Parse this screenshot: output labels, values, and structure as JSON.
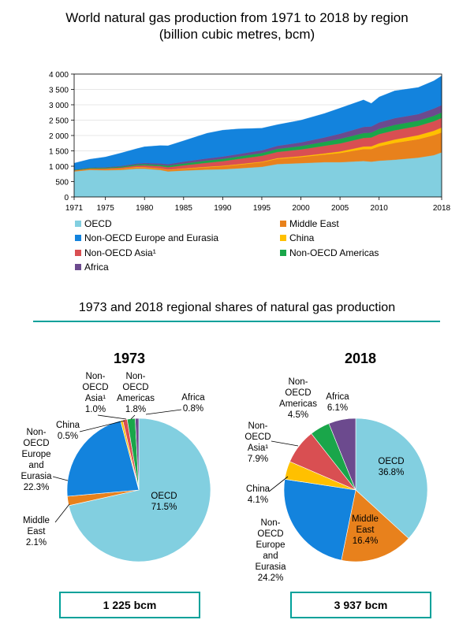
{
  "titles": {
    "main_line1": "World natural gas production from 1971 to 2018 by region",
    "main_line2": "(billion cubic metres, bcm)",
    "shares": "1973 and 2018 regional shares of natural gas production"
  },
  "colors": {
    "OECD": "#82cfe0",
    "Middle East": "#e8811c",
    "China": "#ffc000",
    "Non-OECD Asia": "#d94f52",
    "Non-OECD Americas": "#1aa64a",
    "Africa": "#6c4a8e",
    "Non-OECD Europe and Eurasia": "#1383dd",
    "accent": "#00a19a"
  },
  "chart_data": [
    {
      "type": "area",
      "stacked": true,
      "title": "World natural gas production from 1971 to 2018 by region (billion cubic metres, bcm)",
      "xlim": [
        1971,
        2018
      ],
      "ylim": [
        0,
        4000
      ],
      "x_ticks": [
        1971,
        1975,
        1980,
        1985,
        1990,
        1995,
        2000,
        2005,
        2010,
        2018
      ],
      "y_ticks": [
        "0",
        "500",
        "1 000",
        "1 500",
        "2 000",
        "2 500",
        "3 000",
        "3 500",
        "4 000"
      ],
      "x": [
        1971,
        1973,
        1975,
        1977,
        1979,
        1980,
        1982,
        1983,
        1985,
        1988,
        1990,
        1992,
        1995,
        1997,
        2000,
        2003,
        2005,
        2008,
        2009,
        2010,
        2012,
        2015,
        2017,
        2018
      ],
      "legend": [
        {
          "key": "OECD",
          "label": "OECD"
        },
        {
          "key": "Middle East",
          "label": "Middle East"
        },
        {
          "key": "Non-OECD Europe and Eurasia",
          "label": "Non-OECD Europe and Eurasia"
        },
        {
          "key": "China",
          "label": "China"
        },
        {
          "key": "Non-OECD Asia",
          "label": "Non-OECD Asia¹"
        },
        {
          "key": "Non-OECD Americas",
          "label": "Non-OECD Americas"
        },
        {
          "key": "Africa",
          "label": "Africa"
        }
      ],
      "series": [
        {
          "key": "OECD",
          "values": [
            830,
            880,
            870,
            880,
            920,
            920,
            880,
            830,
            860,
            890,
            900,
            930,
            980,
            1070,
            1100,
            1130,
            1130,
            1170,
            1150,
            1180,
            1210,
            1280,
            1360,
            1450
          ]
        },
        {
          "key": "Middle East",
          "values": [
            20,
            25,
            30,
            35,
            40,
            35,
            40,
            45,
            55,
            80,
            100,
            120,
            150,
            170,
            200,
            250,
            300,
            390,
            410,
            470,
            550,
            600,
            650,
            650
          ]
        },
        {
          "key": "China",
          "values": [
            4,
            6,
            8,
            11,
            14,
            14,
            12,
            12,
            13,
            14,
            15,
            16,
            18,
            23,
            27,
            35,
            50,
            80,
            85,
            95,
            110,
            130,
            145,
            160
          ]
        },
        {
          "key": "Non-OECD Asia",
          "values": [
            10,
            12,
            20,
            30,
            50,
            60,
            70,
            80,
            100,
            130,
            150,
            170,
            190,
            200,
            220,
            250,
            260,
            280,
            290,
            300,
            300,
            300,
            310,
            310
          ]
        },
        {
          "key": "Non-OECD Americas",
          "values": [
            20,
            22,
            25,
            30,
            35,
            40,
            45,
            50,
            60,
            70,
            75,
            80,
            90,
            100,
            110,
            130,
            150,
            160,
            160,
            170,
            175,
            175,
            175,
            180
          ]
        },
        {
          "key": "Africa",
          "values": [
            5,
            12,
            18,
            25,
            32,
            35,
            45,
            50,
            60,
            70,
            75,
            80,
            90,
            100,
            120,
            140,
            170,
            200,
            200,
            210,
            220,
            210,
            240,
            240
          ]
        },
        {
          "key": "Non-OECD Europe and Eurasia",
          "values": [
            210,
            270,
            330,
            420,
            480,
            530,
            580,
            600,
            680,
            820,
            860,
            820,
            720,
            690,
            720,
            780,
            830,
            880,
            750,
            830,
            890,
            870,
            900,
            950
          ]
        }
      ]
    },
    {
      "type": "pie",
      "title": "1973",
      "total": "1 225 bcm",
      "slices": [
        {
          "key": "OECD",
          "label": "OECD\n71.5%",
          "value": 71.5
        },
        {
          "key": "Middle East",
          "label": "Middle\nEast\n2.1%",
          "value": 2.1
        },
        {
          "key": "Non-OECD Europe and Eurasia",
          "label": "Non-\nOECD\nEurope\nand\nEurasia\n22.3%",
          "value": 22.3
        },
        {
          "key": "China",
          "label": "China\n0.5%",
          "value": 0.5
        },
        {
          "key": "Non-OECD Asia",
          "label": "Non-\nOECD\nAsia¹\n1.0%",
          "value": 1.0
        },
        {
          "key": "Non-OECD Americas",
          "label": "Non-\nOECD\nAmericas\n1.8%",
          "value": 1.8
        },
        {
          "key": "Africa",
          "label": "Africa\n0.8%",
          "value": 0.8
        }
      ]
    },
    {
      "type": "pie",
      "title": "2018",
      "total": "3 937 bcm",
      "slices": [
        {
          "key": "OECD",
          "label": "OECD\n36.8%",
          "value": 36.8
        },
        {
          "key": "Middle East",
          "label": "Middle\nEast\n16.4%",
          "value": 16.4
        },
        {
          "key": "Non-OECD Europe and Eurasia",
          "label": "Non-\nOECD\nEurope\nand\nEurasia\n24.2%",
          "value": 24.2
        },
        {
          "key": "China",
          "label": "China\n4.1%",
          "value": 4.1
        },
        {
          "key": "Non-OECD Asia",
          "label": "Non-\nOECD\nAsia¹\n7.9%",
          "value": 7.9
        },
        {
          "key": "Non-OECD Americas",
          "label": "Non-\nOECD\nAmericas\n4.5%",
          "value": 4.5
        },
        {
          "key": "Africa",
          "label": "Africa\n6.1%",
          "value": 6.1
        }
      ]
    }
  ]
}
